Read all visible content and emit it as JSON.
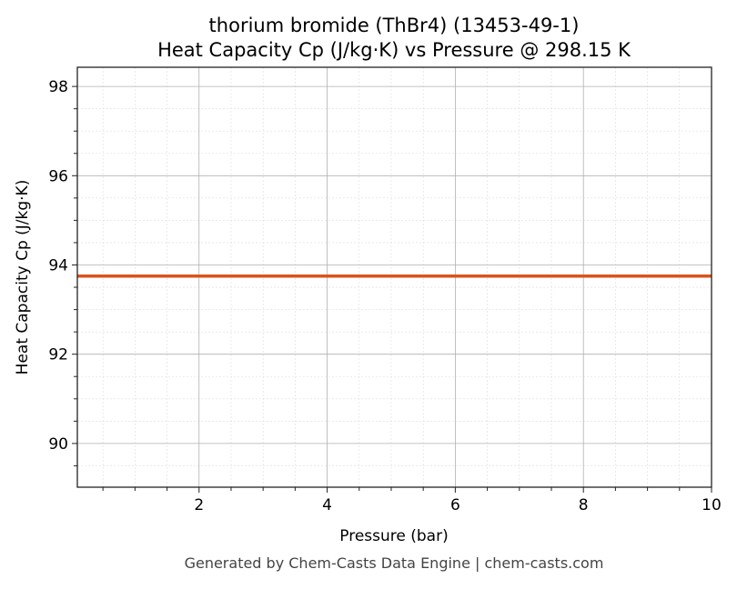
{
  "chart_data": {
    "type": "line",
    "title": "thorium bromide (ThBr4) (13453-49-1)",
    "subtitle": "Heat Capacity Cp (J/kg·K) vs Pressure @ 298.15 K",
    "xlabel": "Pressure (bar)",
    "ylabel": "Heat Capacity Cp (J/kg·K)",
    "xlim": [
      0.1,
      10
    ],
    "ylim": [
      89.02,
      98.43
    ],
    "xticks": [
      2,
      4,
      6,
      8,
      10
    ],
    "yticks": [
      90,
      92,
      94,
      96,
      98
    ],
    "grid": true,
    "series": [
      {
        "x": [
          0.1,
          10
        ],
        "y": [
          93.75,
          93.75
        ],
        "color": "#d9531e"
      }
    ]
  },
  "footer": "Generated by Chem-Casts Data Engine | chem-casts.com"
}
